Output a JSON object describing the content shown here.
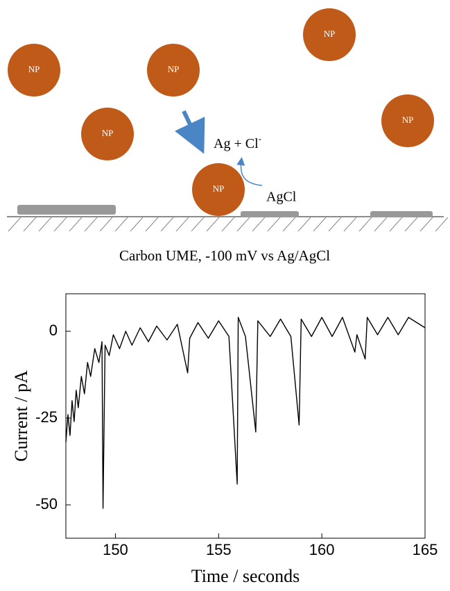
{
  "diagram": {
    "particles": [
      "NP",
      "NP",
      "NP",
      "NP",
      "NP",
      "NP"
    ],
    "reaction": {
      "text": "Ag + Cl",
      "superscript": "-"
    },
    "product": "AgCl",
    "caption": "Carbon UME, -100 mV vs Ag/AgCl"
  },
  "chart_data": {
    "type": "line",
    "xlabel": "Time / seconds",
    "ylabel": "Current / pA",
    "xlim": [
      147.6,
      165
    ],
    "ylim": [
      -59.6,
      10.8
    ],
    "xticks": [
      150,
      155,
      160,
      165
    ],
    "yticks": [
      0,
      -25,
      -50
    ],
    "color": "#000000",
    "x": [
      147.6,
      147.7,
      147.8,
      147.9,
      148.0,
      148.1,
      148.2,
      148.35,
      148.5,
      148.65,
      148.8,
      149.0,
      149.2,
      149.35,
      149.4,
      149.5,
      149.7,
      149.9,
      150.2,
      150.5,
      150.8,
      151.2,
      151.6,
      152,
      152.5,
      153,
      153.5,
      153.6,
      154,
      154.5,
      155,
      155.5,
      155.9,
      155.95,
      156.3,
      156.8,
      156.9,
      157.5,
      158,
      158.5,
      158.9,
      159,
      159.5,
      160,
      160.5,
      161,
      161.6,
      161.7,
      162.1,
      162.2,
      162.7,
      163.2,
      163.7,
      164.2,
      165
    ],
    "values": [
      -32,
      -24,
      -30,
      -20,
      -26,
      -17,
      -22,
      -13,
      -18,
      -9,
      -13,
      -5,
      -9,
      -3,
      -51,
      -4,
      -7,
      -1,
      -5,
      0,
      -4,
      1,
      -3,
      1.5,
      -2.5,
      2,
      -12,
      -2,
      2.5,
      -2,
      3,
      -1.5,
      -44,
      4,
      -1.5,
      -29,
      3,
      -1.5,
      3.5,
      -1.5,
      -27,
      3.5,
      -1.5,
      4,
      -1.5,
      4,
      -6,
      -1,
      -8,
      4,
      -1,
      4,
      -1,
      4,
      1
    ]
  }
}
